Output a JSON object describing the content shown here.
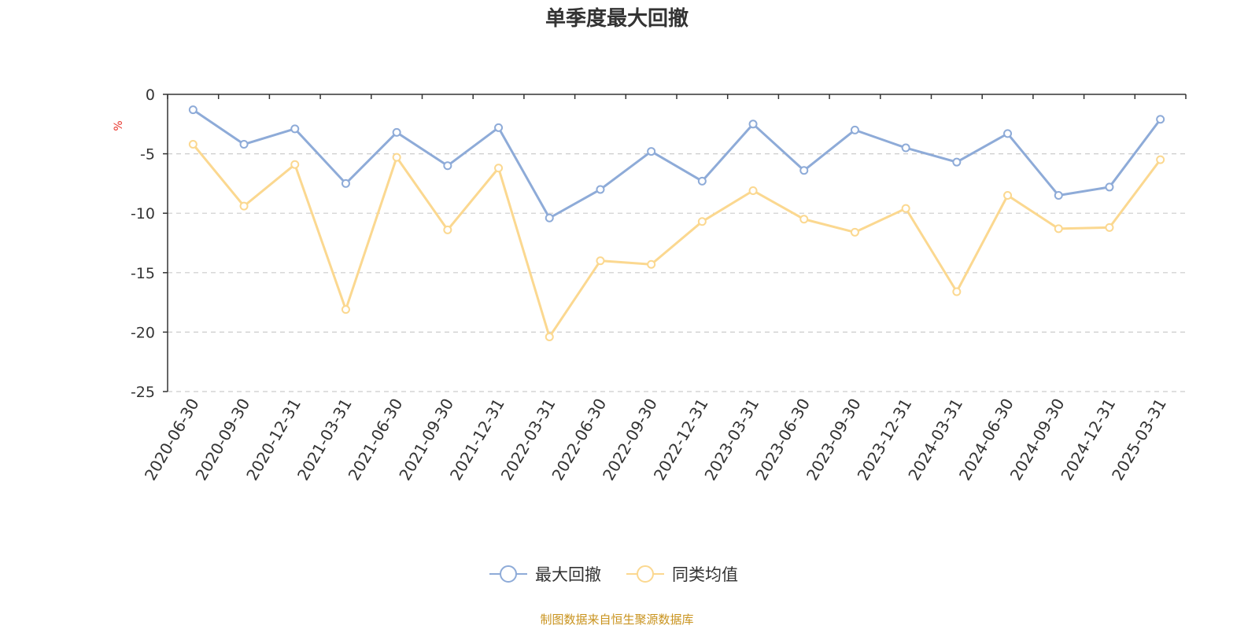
{
  "chart_data": {
    "type": "line",
    "title": "单季度最大回撤",
    "ylabel": "%",
    "xlabel": "",
    "ylim": [
      -25,
      0
    ],
    "yticks": [
      0,
      -5,
      -10,
      -15,
      -20,
      -25
    ],
    "grid": true,
    "legend_position": "bottom-center",
    "categories": [
      "2020-06-30",
      "2020-09-30",
      "2020-12-31",
      "2021-03-31",
      "2021-06-30",
      "2021-09-30",
      "2021-12-31",
      "2022-03-31",
      "2022-06-30",
      "2022-09-30",
      "2022-12-31",
      "2023-03-31",
      "2023-06-30",
      "2023-09-30",
      "2023-12-31",
      "2024-03-31",
      "2024-06-30",
      "2024-09-30",
      "2024-12-31",
      "2025-03-31"
    ],
    "series": [
      {
        "name": "最大回撤",
        "color": "#8eabd8",
        "values": [
          -1.3,
          -4.2,
          -2.9,
          -7.5,
          -3.2,
          -6.0,
          -2.8,
          -10.4,
          -8.0,
          -4.8,
          -7.3,
          -2.5,
          -6.4,
          -3.0,
          -4.5,
          -5.7,
          -3.3,
          -8.5,
          -7.8,
          -2.1
        ]
      },
      {
        "name": "同类均值",
        "color": "#fbd890",
        "values": [
          -4.2,
          -9.4,
          -5.9,
          -18.1,
          -5.3,
          -11.4,
          -6.2,
          -20.4,
          -14.0,
          -14.3,
          -10.7,
          -8.1,
          -10.5,
          -11.6,
          -9.6,
          -16.6,
          -8.5,
          -11.3,
          -11.2,
          -5.5
        ]
      }
    ],
    "source": "制图数据来自恒生聚源数据库"
  }
}
